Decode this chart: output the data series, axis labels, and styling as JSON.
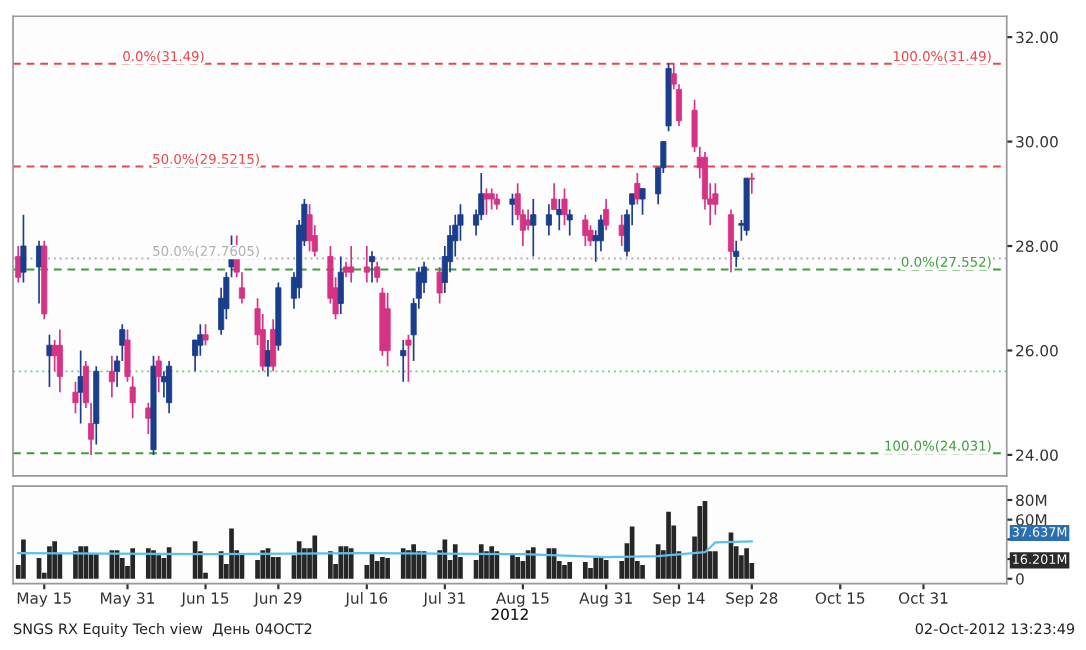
{
  "chart_data": [
    {
      "type": "candlestick",
      "annotations": [
        {
          "text": "0.0%(31.49)",
          "x": "2012-05-30",
          "y": 31.49
        }
      ],
      "x": [
        "2012-05-10",
        "2012-05-11",
        "2012-05-14",
        "2012-05-15",
        "2012-05-16",
        "2012-05-17",
        "2012-05-18",
        "2012-05-21",
        "2012-05-22",
        "2012-05-23",
        "2012-05-24",
        "2012-05-25",
        "2012-05-28",
        "2012-05-29",
        "2012-05-30",
        "2012-05-31",
        "2012-06-01",
        "2012-06-04",
        "2012-06-05",
        "2012-06-06",
        "2012-06-07",
        "2012-06-08",
        "2012-06-13",
        "2012-06-14",
        "2012-06-15",
        "2012-06-18",
        "2012-06-19",
        "2012-06-20",
        "2012-06-21",
        "2012-06-22",
        "2012-06-25",
        "2012-06-26",
        "2012-06-27",
        "2012-06-28",
        "2012-06-29",
        "2012-07-02",
        "2012-07-03",
        "2012-07-04",
        "2012-07-05",
        "2012-07-06",
        "2012-07-09",
        "2012-07-10",
        "2012-07-11",
        "2012-07-12",
        "2012-07-13",
        "2012-07-16",
        "2012-07-17",
        "2012-07-18",
        "2012-07-19",
        "2012-07-20",
        "2012-07-23",
        "2012-07-24",
        "2012-07-25",
        "2012-07-26",
        "2012-07-27",
        "2012-07-30",
        "2012-07-31",
        "2012-08-01",
        "2012-08-02",
        "2012-08-03",
        "2012-08-06",
        "2012-08-07",
        "2012-08-08",
        "2012-08-09",
        "2012-08-10",
        "2012-08-13",
        "2012-08-14",
        "2012-08-15",
        "2012-08-16",
        "2012-08-17",
        "2012-08-20",
        "2012-08-21",
        "2012-08-22",
        "2012-08-23",
        "2012-08-24",
        "2012-08-27",
        "2012-08-28",
        "2012-08-29",
        "2012-08-30",
        "2012-08-31",
        "2012-09-03",
        "2012-09-04",
        "2012-09-05",
        "2012-09-06",
        "2012-09-07",
        "2012-09-10",
        "2012-09-11",
        "2012-09-12",
        "2012-09-13",
        "2012-09-14",
        "2012-09-17",
        "2012-09-18",
        "2012-09-19",
        "2012-09-20",
        "2012-09-21",
        "2012-09-24",
        "2012-09-25",
        "2012-09-26",
        "2012-09-27",
        "2012-09-28"
      ],
      "ohlc": [
        [
          27.8,
          28.0,
          27.3,
          27.4
        ],
        [
          27.5,
          28.6,
          27.3,
          28.0
        ],
        [
          27.6,
          28.1,
          26.9,
          28.0
        ],
        [
          28.0,
          28.1,
          26.6,
          26.7
        ],
        [
          25.9,
          26.3,
          25.3,
          26.1
        ],
        [
          26.1,
          26.2,
          25.6,
          25.9
        ],
        [
          26.1,
          26.4,
          25.2,
          25.5
        ],
        [
          25.2,
          25.4,
          24.8,
          25.0
        ],
        [
          25.2,
          26.0,
          24.6,
          25.5
        ],
        [
          25.7,
          25.8,
          24.9,
          25.0
        ],
        [
          24.6,
          25.0,
          24.0,
          24.3
        ],
        [
          24.6,
          25.7,
          24.2,
          25.6
        ],
        [
          25.6,
          25.9,
          25.1,
          25.4
        ],
        [
          25.6,
          25.9,
          25.3,
          25.8
        ],
        [
          26.1,
          26.5,
          25.8,
          26.4
        ],
        [
          26.2,
          26.4,
          25.4,
          25.5
        ],
        [
          25.3,
          25.5,
          24.7,
          25.0
        ],
        [
          24.9,
          25.0,
          24.4,
          24.7
        ],
        [
          24.1,
          25.9,
          24.0,
          25.7
        ],
        [
          25.8,
          25.9,
          25.2,
          25.5
        ],
        [
          25.4,
          25.6,
          25.1,
          25.5
        ],
        [
          25.0,
          25.8,
          24.8,
          25.7
        ],
        [
          25.9,
          26.2,
          25.6,
          26.2
        ],
        [
          26.1,
          26.5,
          25.9,
          26.3
        ],
        [
          26.3,
          26.5,
          26.1,
          26.2
        ],
        [
          26.4,
          27.2,
          26.3,
          27.0
        ],
        [
          26.8,
          27.5,
          26.6,
          27.4
        ],
        [
          27.6,
          28.2,
          27.4,
          28.0
        ],
        [
          28.0,
          28.2,
          27.4,
          27.5
        ],
        [
          27.2,
          27.5,
          26.9,
          27.0
        ],
        [
          26.8,
          27.0,
          26.1,
          26.3
        ],
        [
          26.4,
          26.7,
          25.6,
          25.7
        ],
        [
          25.7,
          26.2,
          25.5,
          26.0
        ],
        [
          26.4,
          26.6,
          25.6,
          25.7
        ],
        [
          26.1,
          27.3,
          26.0,
          27.2
        ],
        [
          27.0,
          27.5,
          26.8,
          27.4
        ],
        [
          27.2,
          28.5,
          27.0,
          28.4
        ],
        [
          28.1,
          28.9,
          28.0,
          28.8
        ],
        [
          28.6,
          28.8,
          27.9,
          28.1
        ],
        [
          28.2,
          28.4,
          27.8,
          27.9
        ],
        [
          27.8,
          28.0,
          26.9,
          27.0
        ],
        [
          27.2,
          27.4,
          26.6,
          26.7
        ],
        [
          26.9,
          27.8,
          26.7,
          27.5
        ],
        [
          27.6,
          27.7,
          27.4,
          27.5
        ],
        [
          27.6,
          28.0,
          27.3,
          27.5
        ],
        [
          27.6,
          28.0,
          27.3,
          27.5
        ],
        [
          27.7,
          27.9,
          27.3,
          27.8
        ],
        [
          27.6,
          27.7,
          27.3,
          27.4
        ],
        [
          27.1,
          27.2,
          25.9,
          26.0
        ],
        [
          26.8,
          27.1,
          25.7,
          26.0
        ],
        [
          25.9,
          26.2,
          25.4,
          26.0
        ],
        [
          26.2,
          26.3,
          25.4,
          26.1
        ],
        [
          26.3,
          27.0,
          25.8,
          26.9
        ],
        [
          27.0,
          27.6,
          26.8,
          27.5
        ],
        [
          27.3,
          27.7,
          27.1,
          27.6
        ],
        [
          27.5,
          27.6,
          26.9,
          27.1
        ],
        [
          27.3,
          28.0,
          27.1,
          27.8
        ],
        [
          27.7,
          28.4,
          27.5,
          28.2
        ],
        [
          28.1,
          28.6,
          27.8,
          28.4
        ],
        [
          28.4,
          28.8,
          28.1,
          28.6
        ],
        [
          28.4,
          28.7,
          28.2,
          28.6
        ],
        [
          28.6,
          29.4,
          28.5,
          29.0
        ],
        [
          29.0,
          29.1,
          28.6,
          28.9
        ],
        [
          29.0,
          29.1,
          28.7,
          28.9
        ],
        [
          28.9,
          29.0,
          28.7,
          28.8
        ],
        [
          28.8,
          29.0,
          28.4,
          28.9
        ],
        [
          29.0,
          29.2,
          28.5,
          28.6
        ],
        [
          28.6,
          28.7,
          28.0,
          28.3
        ],
        [
          28.5,
          28.7,
          28.3,
          28.4
        ],
        [
          28.4,
          28.9,
          27.8,
          28.6
        ],
        [
          28.4,
          28.8,
          28.2,
          28.6
        ],
        [
          28.9,
          29.2,
          28.7,
          28.7
        ],
        [
          28.6,
          28.9,
          28.3,
          28.7
        ],
        [
          28.9,
          29.1,
          28.4,
          28.6
        ],
        [
          28.5,
          28.7,
          28.2,
          28.6
        ],
        [
          28.5,
          28.6,
          28.0,
          28.2
        ],
        [
          28.3,
          28.4,
          28.0,
          28.1
        ],
        [
          28.1,
          28.3,
          27.7,
          28.2
        ],
        [
          28.1,
          28.6,
          27.9,
          28.5
        ],
        [
          28.7,
          28.9,
          28.3,
          28.4
        ],
        [
          28.4,
          28.6,
          28.0,
          28.2
        ],
        [
          27.9,
          28.7,
          27.8,
          28.6
        ],
        [
          28.8,
          29.0,
          28.4,
          29.0
        ],
        [
          29.2,
          29.4,
          28.8,
          28.9
        ],
        [
          28.9,
          29.1,
          28.6,
          29.1
        ],
        [
          29.0,
          29.5,
          28.8,
          29.5
        ],
        [
          29.5,
          30.0,
          29.4,
          30.0
        ],
        [
          30.3,
          31.5,
          30.2,
          31.4
        ],
        [
          31.3,
          31.5,
          31.0,
          31.1
        ],
        [
          31.0,
          31.1,
          30.3,
          30.4
        ],
        [
          30.6,
          30.8,
          29.8,
          29.9
        ],
        [
          29.7,
          29.9,
          29.3,
          29.5
        ],
        [
          29.7,
          29.8,
          28.7,
          28.9
        ],
        [
          28.9,
          29.2,
          28.4,
          28.8
        ],
        [
          29.0,
          29.2,
          28.6,
          28.8
        ],
        [
          28.6,
          28.7,
          27.5,
          27.9
        ],
        [
          27.8,
          28.1,
          27.6,
          27.9
        ],
        [
          28.4,
          28.5,
          28.1,
          28.4
        ],
        [
          28.3,
          29.3,
          28.2,
          29.3
        ],
        [
          29.3,
          29.4,
          29.0,
          29.28
        ]
      ],
      "xlim": [
        "2012-05-09",
        "2012-11-16"
      ],
      "ylim": [
        23.6,
        32.4
      ],
      "yticks": [
        {
          "value": 24,
          "label": "24.00"
        },
        {
          "value": 26,
          "label": "26.00"
        },
        {
          "value": 28,
          "label": "28.00"
        },
        {
          "value": 30,
          "label": "30.00"
        },
        {
          "value": 32,
          "label": "32.00"
        }
      ],
      "tick_labels": "y",
      "ref_lines": [
        {
          "axis": "y",
          "value": 27.7605,
          "label": "50.0%(27.7605)",
          "color": "#b0b0b0",
          "line_style": "dotted"
        },
        {
          "axis": "y",
          "value": 31.49,
          "label": "100.0%(31.49)",
          "color": "#e8474c",
          "line_style": "dashed"
        },
        {
          "axis": "y",
          "value": 29.5215,
          "label": "50.0%(29.5215)",
          "color": "#e8474c",
          "line_style": "dashed"
        },
        {
          "axis": "y",
          "value": 24.031,
          "label": "100.0%(24.031)",
          "color": "#3aa03a",
          "line_style": "dashed"
        },
        {
          "axis": "y",
          "value": 25.6,
          "color": "#7cc67c",
          "line_style": "dotted"
        },
        {
          "axis": "y",
          "value": 27.552,
          "label": "0.0%(27.552)",
          "color": "#3aa03a",
          "line_style": "dashed"
        }
      ]
    },
    {
      "type": "bar",
      "xlabel": "2012",
      "x": [
        "2012-05-10",
        "2012-05-11",
        "2012-05-14",
        "2012-05-15",
        "2012-05-16",
        "2012-05-17",
        "2012-05-18",
        "2012-05-21",
        "2012-05-22",
        "2012-05-23",
        "2012-05-24",
        "2012-05-25",
        "2012-05-28",
        "2012-05-29",
        "2012-05-30",
        "2012-05-31",
        "2012-06-01",
        "2012-06-04",
        "2012-06-05",
        "2012-06-06",
        "2012-06-07",
        "2012-06-08",
        "2012-06-13",
        "2012-06-14",
        "2012-06-15",
        "2012-06-18",
        "2012-06-19",
        "2012-06-20",
        "2012-06-21",
        "2012-06-22",
        "2012-06-25",
        "2012-06-26",
        "2012-06-27",
        "2012-06-28",
        "2012-06-29",
        "2012-07-02",
        "2012-07-03",
        "2012-07-04",
        "2012-07-05",
        "2012-07-06",
        "2012-07-09",
        "2012-07-10",
        "2012-07-11",
        "2012-07-12",
        "2012-07-13",
        "2012-07-16",
        "2012-07-17",
        "2012-07-18",
        "2012-07-19",
        "2012-07-20",
        "2012-07-23",
        "2012-07-24",
        "2012-07-25",
        "2012-07-26",
        "2012-07-27",
        "2012-07-30",
        "2012-07-31",
        "2012-08-01",
        "2012-08-02",
        "2012-08-03",
        "2012-08-06",
        "2012-08-07",
        "2012-08-08",
        "2012-08-09",
        "2012-08-10",
        "2012-08-13",
        "2012-08-14",
        "2012-08-15",
        "2012-08-16",
        "2012-08-17",
        "2012-08-20",
        "2012-08-21",
        "2012-08-22",
        "2012-08-23",
        "2012-08-24",
        "2012-08-27",
        "2012-08-28",
        "2012-08-29",
        "2012-08-30",
        "2012-08-31",
        "2012-09-03",
        "2012-09-04",
        "2012-09-05",
        "2012-09-06",
        "2012-09-07",
        "2012-09-10",
        "2012-09-11",
        "2012-09-12",
        "2012-09-13",
        "2012-09-14",
        "2012-09-17",
        "2012-09-18",
        "2012-09-19",
        "2012-09-20",
        "2012-09-21",
        "2012-09-24",
        "2012-09-25",
        "2012-09-26",
        "2012-09-27",
        "2012-09-28"
      ],
      "series": [
        {
          "type": "bar",
          "color": "#262626",
          "values": [
            14,
            40,
            21,
            6,
            33,
            38,
            26,
            28,
            33,
            33,
            25,
            25,
            29,
            29,
            21,
            13,
            31,
            31,
            29,
            24,
            21,
            32,
            38,
            28,
            6,
            28,
            15,
            51,
            29,
            26,
            19,
            29,
            31,
            22,
            22,
            24,
            38,
            31,
            31,
            44,
            28,
            15,
            33,
            33,
            31,
            14,
            26,
            18,
            22,
            21,
            31,
            29,
            35,
            28,
            28,
            29,
            40,
            19,
            35,
            22,
            19,
            35,
            28,
            33,
            28,
            25,
            22,
            18,
            29,
            32,
            31,
            31,
            18,
            14,
            17,
            17,
            11,
            21,
            21,
            19,
            18,
            36,
            53,
            18,
            14,
            35,
            29,
            68,
            54,
            28,
            43,
            74,
            79,
            28,
            28,
            47,
            33,
            24,
            31,
            16
          ]
        },
        {
          "type": "line",
          "color": "#5bc0eb",
          "x": [
            "2012-05-10",
            "2012-06-15",
            "2012-07-16",
            "2012-08-15",
            "2012-08-31",
            "2012-09-10",
            "2012-09-19",
            "2012-09-21",
            "2012-09-28"
          ],
          "values": [
            26,
            25,
            26,
            25,
            22,
            23,
            27,
            37,
            38
          ]
        }
      ],
      "xlim": [
        "2012-05-09",
        "2012-11-16"
      ],
      "xticks": [
        {
          "value": "2012-05-15",
          "label": "May 15"
        },
        {
          "value": "2012-05-31",
          "label": "May 31"
        },
        {
          "value": "2012-06-15",
          "label": "Jun 15"
        },
        {
          "value": "2012-06-29",
          "label": "Jun 29"
        },
        {
          "value": "2012-07-16",
          "label": "Jul 16"
        },
        {
          "value": "2012-07-31",
          "label": "Jul 31"
        },
        {
          "value": "2012-08-15",
          "label": "Aug 15"
        },
        {
          "value": "2012-08-31",
          "label": "Aug 31"
        },
        {
          "value": "2012-09-14",
          "label": "Sep 14"
        },
        {
          "value": "2012-09-28",
          "label": "Sep 28"
        },
        {
          "value": "2012-10-15",
          "label": "Oct 15"
        },
        {
          "value": "2012-10-31",
          "label": "Oct 31"
        }
      ],
      "ylim": [
        -5,
        94
      ],
      "yticks": [
        0,
        {
          "value": 20,
          "label": null
        },
        {
          "value": 40,
          "label": null
        },
        {
          "value": 60,
          "label": "60M"
        },
        {
          "value": 80,
          "label": "80M"
        }
      ],
      "annotations": [
        "37.637M",
        "16.201M",
        "SNGS RX Equity Tech view  День 04OCT2",
        "02-Oct-2012 13:23:49"
      ]
    }
  ]
}
